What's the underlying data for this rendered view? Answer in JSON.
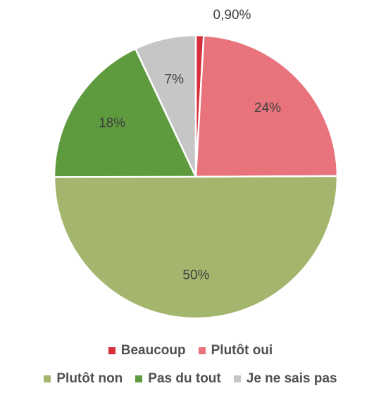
{
  "chart_data": {
    "type": "pie",
    "categories": [
      "Beaucoup",
      "Plutôt oui",
      "Plutôt non",
      "Pas du tout",
      "Je ne sais pas"
    ],
    "values": [
      0.9,
      24,
      50,
      18,
      7
    ],
    "value_labels": [
      "0,90%",
      "24%",
      "50%",
      "18%",
      "7%"
    ],
    "colors": [
      "#d52f3b",
      "#e8737c",
      "#a4b56e",
      "#5e9b3e",
      "#c6c6c6"
    ],
    "legend": "bottom"
  }
}
